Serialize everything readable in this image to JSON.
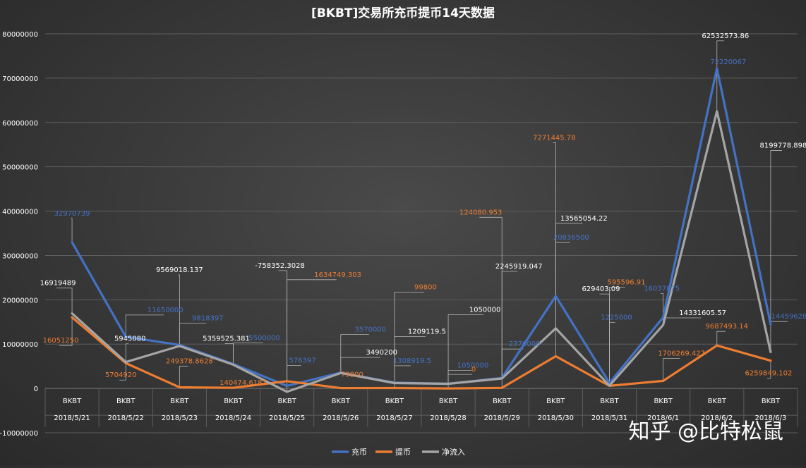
{
  "chart_data": {
    "type": "line",
    "title": "[BKBT]交易所充币提币14天数据",
    "x_group_label": "BKBT",
    "categories": [
      "2018/5/21",
      "2018/5/22",
      "2018/5/23",
      "2018/5/24",
      "2018/5/25",
      "2018/5/26",
      "2018/5/27",
      "2018/5/28",
      "2018/5/29",
      "2018/5/30",
      "2018/5/31",
      "2018/6/1",
      "2018/6/2",
      "2018/6/3"
    ],
    "ylim": [
      -10000000,
      80000000
    ],
    "yticks": [
      "80000000",
      "70000000",
      "60000000",
      "50000000",
      "40000000",
      "30000000",
      "20000000",
      "10000000",
      "0",
      "-10000000"
    ],
    "grid": true,
    "legend_position": "bottom",
    "series": [
      {
        "name": "充币",
        "color": "#4472c4",
        "values": [
          32970739,
          11650000,
          9818397,
          5500000,
          576397,
          3570000,
          1308919.5,
          1050000,
          2370000,
          20836500,
          1225000,
          16037875,
          72220067,
          14459628
        ],
        "labels": [
          "32970739",
          "11650000",
          "9818397",
          "5500000",
          "576397",
          "3570000",
          "1308919.5",
          "1050000",
          "2370000",
          "20836500",
          "1225000",
          "16037875",
          "72220067",
          "14459628"
        ]
      },
      {
        "name": "提币",
        "color": "#ed7d31",
        "values": [
          16051250,
          5704920,
          249378.8628,
          140474.6187,
          1634749.303,
          79800,
          99800,
          0,
          124080.953,
          7271445.78,
          595596.91,
          1706269.427,
          9687493.14,
          6259849.102
        ],
        "labels": [
          "16051250",
          "5704920",
          "249378.8628",
          "140474.6187",
          "1634749.303",
          "79800",
          "99800",
          "0",
          "124080.953",
          "7271445.78",
          "595596.91",
          "1706269.427",
          "9687493.14",
          "6259849.102"
        ]
      },
      {
        "name": "净流入",
        "color": "#a5a5a5",
        "values": [
          16919489,
          5945080,
          9569018.137,
          5359525.381,
          -758352.3028,
          3490200,
          1209119.5,
          1050000,
          2245919.047,
          13565054.22,
          629403.09,
          14331605.57,
          62532573.86,
          8199778.898
        ],
        "labels": [
          "16919489",
          "5945080",
          "9569018.137",
          "5359525.381",
          "-758352.3028",
          "3490200",
          "1209119.5",
          "1050000",
          "2245919.047",
          "13565054.22",
          "629403.09",
          "14331605.57",
          "62532573.86",
          "8199778.898"
        ]
      }
    ]
  },
  "watermark": "知乎 @比特松鼠"
}
